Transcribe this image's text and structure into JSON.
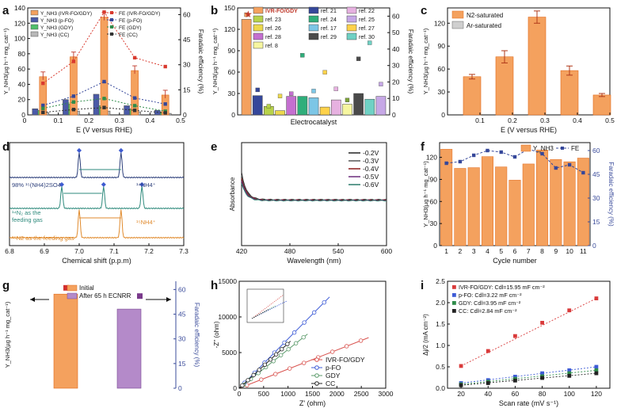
{
  "figure_title": "Nine-panel electrochemical NRR figure",
  "colors": {
    "orange": "#f4a15e",
    "orange_edge": "#e06a1c",
    "blue": "#4a5aa8",
    "green": "#4fbf6a",
    "gray": "#b8b8b8",
    "red_line": "#d93a2f",
    "navy_line": "#35479a",
    "dk_green": "#2f8c4a",
    "black_line": "#333333",
    "axis_blue": "#3b4c9b"
  },
  "chart_data": [
    {
      "panel": "a",
      "type": "bar",
      "xlabel": "E (V versus RHE)",
      "ylabel": "Y_NH3(µg h⁻¹ mg_cat⁻¹)",
      "y2label": "Faradaic efficiency (%)",
      "xlim": [
        0,
        0.5
      ],
      "ylim": [
        0,
        140
      ],
      "y2lim": [
        0,
        64
      ],
      "xticks": [
        "0.1",
        "0.2",
        "0.3",
        "0.4",
        "0.5"
      ],
      "yticks": [
        "0",
        "20",
        "40",
        "60",
        "80",
        "100",
        "120",
        "140"
      ],
      "y2ticks": [
        "0",
        "15",
        "30",
        "45",
        "60"
      ],
      "x": [
        0.05,
        0.15,
        0.25,
        0.35,
        0.45
      ],
      "series": [
        {
          "name": "Y_NH3 (IVR-FO/GDY)",
          "kind": "bar",
          "values": [
            50,
            76,
            128,
            58,
            26
          ]
        },
        {
          "name": "Y_NH3 (p-FO)",
          "kind": "bar",
          "values": [
            8,
            20,
            27,
            12,
            6
          ]
        },
        {
          "name": "Y_NH3 (GDY)",
          "kind": "bar",
          "values": [
            6,
            14,
            12,
            8,
            4
          ]
        },
        {
          "name": "Y_NH3 (CC)",
          "kind": "bar",
          "values": [
            3,
            5,
            5,
            4,
            2
          ]
        },
        {
          "name": "FE (IVR-FO/GDY)",
          "kind": "line",
          "values": [
            18.9,
            32,
            61.5,
            34.2,
            28.9
          ]
        },
        {
          "name": "FE (p-FO)",
          "kind": "line",
          "values": [
            5.7,
            11.2,
            19.9,
            10.1,
            6.5
          ]
        },
        {
          "name": "FE (GDY)",
          "kind": "line",
          "values": [
            3.9,
            7.7,
            9.8,
            5.5,
            2.2
          ]
        },
        {
          "name": "FE (CC)",
          "kind": "line",
          "values": [
            1.5,
            3.2,
            4.4,
            2.7,
            1.2
          ]
        }
      ]
    },
    {
      "panel": "b",
      "type": "bar",
      "xlabel": "Electrocatalyst",
      "ylabel": "Y_NH3(µg h⁻¹ mg_cat⁻¹)",
      "y2label": "Faradaic efficiency (%)",
      "ylim": [
        0,
        150
      ],
      "y2lim": [
        0,
        65
      ],
      "yticks": [
        "0",
        "30",
        "60",
        "90",
        "120",
        "150"
      ],
      "y2ticks": [
        "0",
        "10",
        "20",
        "30",
        "40",
        "50",
        "60"
      ],
      "categories": [
        "IVR-FO/GDY",
        "ref. 21",
        "ref. 23",
        "ref. 26",
        "ref. 28",
        "ref. 24",
        "ref. 17",
        "ref. 27",
        "ref. 22",
        "ref. 8",
        "ref. 29",
        "ref. 30",
        "ref. 25"
      ],
      "values": [
        134,
        27,
        12,
        6,
        26,
        26,
        24,
        11,
        21,
        15,
        30,
        22,
        26
      ],
      "fe_points": [
        60.9,
        15.2,
        5.3,
        11.4,
        12.9,
        36.2,
        14.5,
        25.9,
        15.8,
        9.0,
        34.1,
        43.8,
        18.7
      ],
      "legend": [
        "IVR-FO/GDY",
        "ref. 21",
        "ref. 22",
        "ref. 23",
        "ref. 24",
        "ref. 25",
        "ref. 26",
        "ref. 17",
        "ref. 27",
        "ref. 28",
        "ref. 29",
        "ref. 30",
        "ref. 8"
      ]
    },
    {
      "panel": "c",
      "type": "bar",
      "xlabel": "E (V versus RHE)",
      "ylabel": "Y_NH3(µg h⁻¹ mg_cat⁻¹)",
      "xlim": [
        0,
        0.5
      ],
      "ylim": [
        0,
        140
      ],
      "xticks": [
        "0.1",
        "0.2",
        "0.3",
        "0.4",
        "0.5"
      ],
      "yticks": [
        "0",
        "30",
        "60",
        "90",
        "120"
      ],
      "x": [
        0.1,
        0.2,
        0.3,
        0.4,
        0.5
      ],
      "series": [
        {
          "name": "N2-saturated",
          "values": [
            50,
            76,
            128,
            58,
            26
          ],
          "errors": [
            3,
            8,
            8,
            6,
            2
          ]
        },
        {
          "name": "Ar-saturated",
          "values": [
            0,
            0,
            0,
            0,
            0
          ]
        }
      ]
    },
    {
      "panel": "d",
      "type": "line",
      "xlabel": "Chemical shift (p.p.m)",
      "xlim": [
        6.8,
        7.3
      ],
      "xticks": [
        "6.8",
        "6.9",
        "7.0",
        "7.1",
        "7.2",
        "7.3"
      ],
      "series": [
        {
          "name": "98% ¹⁵(NH4)2SO4",
          "peaks": [
            7.0,
            7.12
          ]
        },
        {
          "name": "¹⁴N2 as the feeding gas",
          "peaks": [
            6.95,
            7.07,
            7.18
          ]
        },
        {
          "name": "¹⁵N2 as the feeding gas",
          "peaks": [
            7.0,
            7.12
          ]
        }
      ],
      "annotations": [
        "¹⁴NH4⁺",
        "¹⁵NH4⁺",
        "98% ¹⁵(NH4)2SO4",
        "¹⁴N2 as the feeding gas",
        "¹⁵N2 as the feeding gas"
      ]
    },
    {
      "panel": "e",
      "type": "line",
      "xlabel": "Wavelength (nm)",
      "ylabel": "Absorbance",
      "xlim": [
        420,
        600
      ],
      "xticks": [
        "420",
        "480",
        "540",
        "600"
      ],
      "series": [
        {
          "name": "-0.2V",
          "color": "#222222"
        },
        {
          "name": "-0.3V",
          "color": "#555555"
        },
        {
          "name": "-0.4V",
          "color": "#8a1a1a"
        },
        {
          "name": "-0.5V",
          "color": "#6a2a7a"
        },
        {
          "name": "-0.6V",
          "color": "#2a7a6a"
        }
      ]
    },
    {
      "panel": "f",
      "type": "bar",
      "xlabel": "Cycle number",
      "ylabel": "Y_NH3(µg h⁻¹ mg_cat⁻¹)",
      "y2label": "Faradaic efficiency (%)",
      "ylim": [
        0,
        140
      ],
      "y2lim": [
        0,
        65
      ],
      "yticks": [
        "0",
        "30",
        "60",
        "90",
        "120"
      ],
      "y2ticks": [
        "0",
        "15",
        "30",
        "45",
        "60"
      ],
      "categories": [
        "1",
        "2",
        "3",
        "4",
        "5",
        "6",
        "7",
        "8",
        "9",
        "10",
        "11"
      ],
      "values": [
        131,
        105,
        106,
        121,
        107,
        89,
        111,
        130,
        117,
        114,
        119
      ],
      "fe": [
        52,
        53,
        57,
        60,
        59,
        56,
        61,
        58,
        49,
        51,
        46
      ],
      "legend": [
        "Y_NH3",
        "FE"
      ]
    },
    {
      "panel": "g",
      "type": "bar",
      "ylabel": "Y_NH3(µg h⁻¹ mg_cat⁻¹)",
      "y2label": "Faradaic efficiency (%)",
      "y2lim": [
        0,
        65
      ],
      "y2ticks": [
        "0",
        "15",
        "30",
        "45",
        "60"
      ],
      "categories": [
        "Initial",
        "After 65 h ECNRR"
      ],
      "values": [
        132,
        111
      ],
      "fe_points": [
        61,
        56
      ]
    },
    {
      "panel": "h",
      "type": "scatter",
      "xlabel": "Z' (ohm)",
      "ylabel": "-Z'' (ohm)",
      "xlim": [
        0,
        3000
      ],
      "ylim": [
        0,
        15000
      ],
      "xticks": [
        "0",
        "500",
        "1000",
        "1500",
        "2000",
        "2500",
        "3000"
      ],
      "yticks": [
        "0",
        "5000",
        "10000",
        "15000"
      ],
      "series": [
        {
          "name": "IVR-FO/GDY",
          "end": [
            2650,
            7100
          ]
        },
        {
          "name": "p-FO",
          "end": [
            1850,
            12800
          ]
        },
        {
          "name": "GDY",
          "end": [
            1400,
            7600
          ]
        },
        {
          "name": "CC",
          "end": [
            1050,
            6600
          ]
        }
      ]
    },
    {
      "panel": "i",
      "type": "scatter",
      "xlabel": "Scan rate (mV s⁻¹)",
      "ylabel": "Δj/2 (mA cm⁻²)",
      "xlim": [
        10,
        130
      ],
      "ylim": [
        0,
        2.5
      ],
      "xticks": [
        "20",
        "40",
        "60",
        "80",
        "100",
        "120"
      ],
      "yticks": [
        "0.0",
        "0.5",
        "1.0",
        "1.5",
        "2.0",
        "2.5"
      ],
      "x": [
        20,
        40,
        60,
        80,
        100,
        120
      ],
      "series": [
        {
          "name": "IVR-FO/GDY: Cdl=15.95 mF cm⁻²",
          "values": [
            0.52,
            0.87,
            1.22,
            1.53,
            1.82,
            2.1
          ]
        },
        {
          "name": "p-FO: Cdl=3.22 mF cm⁻²",
          "values": [
            0.12,
            0.19,
            0.27,
            0.35,
            0.42,
            0.5
          ]
        },
        {
          "name": "GDY: Cdl=3.95 mF cm⁻²",
          "values": [
            0.09,
            0.15,
            0.22,
            0.28,
            0.35,
            0.42
          ]
        },
        {
          "name": "CC: Cdl=2.84 mF cm⁻²",
          "values": [
            0.07,
            0.12,
            0.18,
            0.24,
            0.29,
            0.35
          ]
        }
      ]
    }
  ]
}
